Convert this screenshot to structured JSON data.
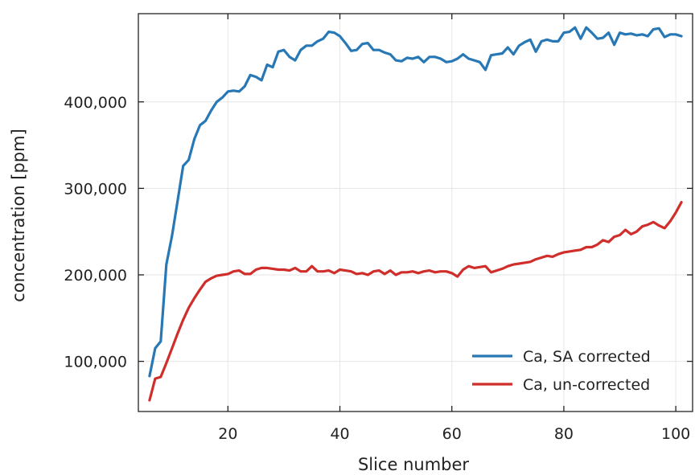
{
  "chart_data": {
    "type": "line",
    "xlabel": "Slice number",
    "ylabel": "concentration [ppm]",
    "xlim": [
      4,
      103
    ],
    "ylim": [
      42000,
      502000
    ],
    "xticks": [
      20,
      40,
      60,
      80,
      100
    ],
    "xtick_labels": [
      "20",
      "40",
      "60",
      "80",
      "100"
    ],
    "yticks": [
      100000,
      200000,
      300000,
      400000
    ],
    "ytick_labels": [
      "100,000",
      "200,000",
      "300,000",
      "400,000"
    ],
    "grid": true,
    "legend_position": "lower-right",
    "x": [
      6,
      7,
      8,
      9,
      10,
      11,
      12,
      13,
      14,
      15,
      16,
      17,
      18,
      19,
      20,
      21,
      22,
      23,
      24,
      25,
      26,
      27,
      28,
      29,
      30,
      31,
      32,
      33,
      34,
      35,
      36,
      37,
      38,
      39,
      40,
      41,
      42,
      43,
      44,
      45,
      46,
      47,
      48,
      49,
      50,
      51,
      52,
      53,
      54,
      55,
      56,
      57,
      58,
      59,
      60,
      61,
      62,
      63,
      64,
      65,
      66,
      67,
      68,
      69,
      70,
      71,
      72,
      73,
      74,
      75,
      76,
      77,
      78,
      79,
      80,
      81,
      82,
      83,
      84,
      85,
      86,
      87,
      88,
      89,
      90,
      91,
      92,
      93,
      94,
      95,
      96,
      97,
      98,
      99,
      100,
      101
    ],
    "series": [
      {
        "name": "Ca, SA corrected",
        "color": "#2878b5",
        "values": [
          83000,
          115000,
          123000,
          212000,
          245000,
          285000,
          326000,
          333000,
          357000,
          373000,
          378000,
          390000,
          400000,
          405000,
          412000,
          413000,
          412000,
          418000,
          431000,
          429000,
          425000,
          443000,
          440000,
          458000,
          460000,
          452000,
          448000,
          460000,
          465000,
          465000,
          470000,
          473000,
          481000,
          480000,
          476000,
          468000,
          459000,
          460000,
          467000,
          468000,
          460000,
          460000,
          457000,
          455000,
          448000,
          447000,
          451000,
          450000,
          452000,
          446000,
          452000,
          452000,
          450000,
          446000,
          447000,
          450000,
          455000,
          450000,
          448000,
          446000,
          437000,
          454000,
          455000,
          456000,
          463000,
          455000,
          465000,
          469000,
          472000,
          458000,
          470000,
          472000,
          470000,
          470000,
          480000,
          481000,
          486000,
          473000,
          486000,
          480000,
          473000,
          474000,
          480000,
          466000,
          480000,
          478000,
          479000,
          477000,
          478000,
          476000,
          484000,
          485000,
          475000,
          478000,
          478000,
          476000
        ]
      },
      {
        "name": "Ca, un-corrected",
        "color": "#cf2e2b",
        "values": [
          55000,
          80000,
          82000,
          98000,
          115000,
          132000,
          148000,
          162000,
          173000,
          183000,
          192000,
          196000,
          199000,
          200000,
          201000,
          204000,
          205000,
          201000,
          201000,
          206000,
          208000,
          208000,
          207000,
          206000,
          206000,
          205000,
          208000,
          204000,
          204000,
          210000,
          204000,
          204000,
          205000,
          202000,
          206000,
          205000,
          204000,
          201000,
          202000,
          200000,
          204000,
          205000,
          201000,
          205000,
          200000,
          203000,
          203000,
          204000,
          202000,
          204000,
          205000,
          203000,
          204000,
          204000,
          202000,
          198000,
          206000,
          210000,
          208000,
          209000,
          210000,
          203000,
          205000,
          207000,
          210000,
          212000,
          213000,
          214000,
          215000,
          218000,
          220000,
          222000,
          221000,
          224000,
          226000,
          227000,
          228000,
          229000,
          232000,
          232000,
          235000,
          240000,
          238000,
          244000,
          246000,
          252000,
          247000,
          250000,
          256000,
          258000,
          261000,
          257000,
          254000,
          262000,
          272000,
          284000
        ]
      }
    ]
  }
}
